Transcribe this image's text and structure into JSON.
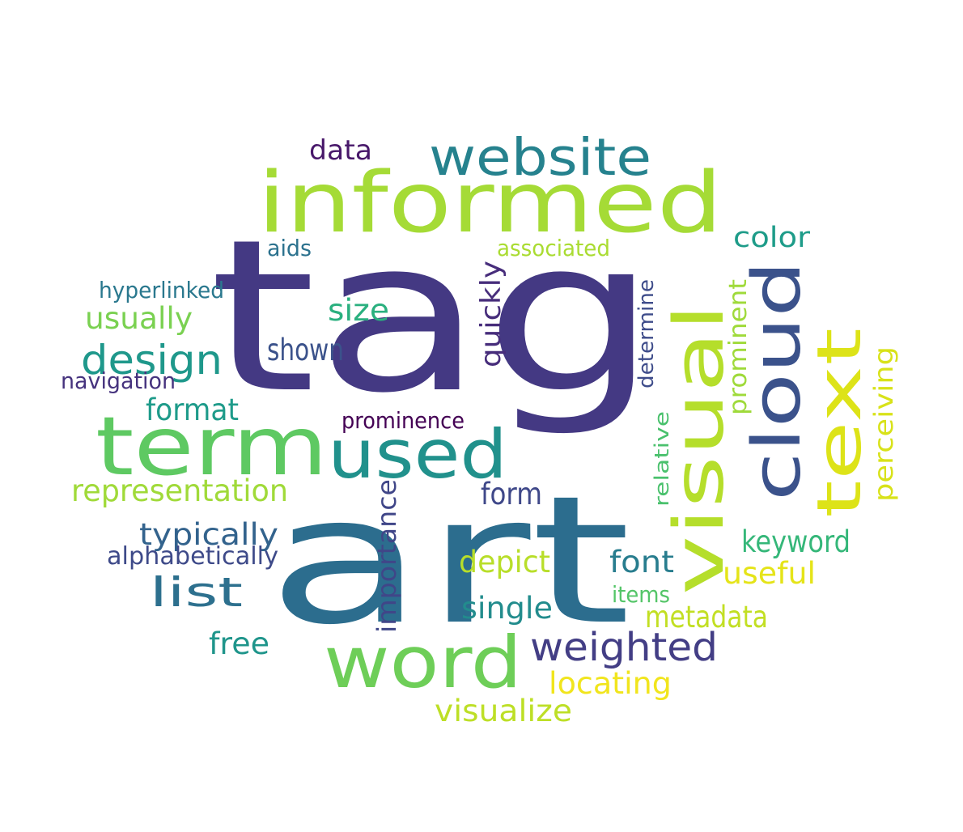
{
  "palette_note_colors": {
    "background": "#ffffff"
  },
  "words": [
    {
      "text": "tag",
      "color": "#443983"
    },
    {
      "text": "art",
      "color": "#2c6d8e"
    },
    {
      "text": "informed",
      "color": "#a5db36"
    },
    {
      "text": "term",
      "color": "#5ec962"
    },
    {
      "text": "used",
      "color": "#21918c"
    },
    {
      "text": "visual",
      "color": "#b5de2b"
    },
    {
      "text": "cloud",
      "color": "#3b528b"
    },
    {
      "text": "text",
      "color": "#dde318"
    },
    {
      "text": "word",
      "color": "#6ece58"
    },
    {
      "text": "website",
      "color": "#26828e"
    },
    {
      "text": "weighted",
      "color": "#433e85"
    },
    {
      "text": "design",
      "color": "#1f988b"
    },
    {
      "text": "list",
      "color": "#2d708e"
    },
    {
      "text": "representation",
      "color": "#a0da39"
    },
    {
      "text": "typically",
      "color": "#33638d"
    },
    {
      "text": "alphabetically",
      "color": "#3e4a89"
    },
    {
      "text": "importance",
      "color": "#404688"
    },
    {
      "text": "quickly",
      "color": "#472d7b"
    },
    {
      "text": "depict",
      "color": "#b8de29"
    },
    {
      "text": "single",
      "color": "#228c8d"
    },
    {
      "text": "font",
      "color": "#287d8e"
    },
    {
      "text": "keyword",
      "color": "#35b779"
    },
    {
      "text": "useful",
      "color": "#e5e419"
    },
    {
      "text": "metadata",
      "color": "#c2df23"
    },
    {
      "text": "locating",
      "color": "#f1e51d"
    },
    {
      "text": "visualize",
      "color": "#bddf26"
    },
    {
      "text": "free",
      "color": "#1f958b"
    },
    {
      "text": "form",
      "color": "#3f4889"
    },
    {
      "text": "prominence",
      "color": "#440154"
    },
    {
      "text": "format",
      "color": "#1e9b8a"
    },
    {
      "text": "shown",
      "color": "#3b528b"
    },
    {
      "text": "size",
      "color": "#2ab07f"
    },
    {
      "text": "navigation",
      "color": "#46337e"
    },
    {
      "text": "hyperlinked",
      "color": "#2a788e"
    },
    {
      "text": "usually",
      "color": "#7ad151"
    },
    {
      "text": "aids",
      "color": "#2c728e"
    },
    {
      "text": "associated",
      "color": "#aadc32"
    },
    {
      "text": "data",
      "color": "#48186a"
    },
    {
      "text": "color",
      "color": "#1e9c89"
    },
    {
      "text": "prominent",
      "color": "#9fda3a"
    },
    {
      "text": "determine",
      "color": "#3e4c8a"
    },
    {
      "text": "perceiving",
      "color": "#d8e219"
    },
    {
      "text": "relative",
      "color": "#4ac16d"
    },
    {
      "text": "items",
      "color": "#54c568"
    }
  ]
}
